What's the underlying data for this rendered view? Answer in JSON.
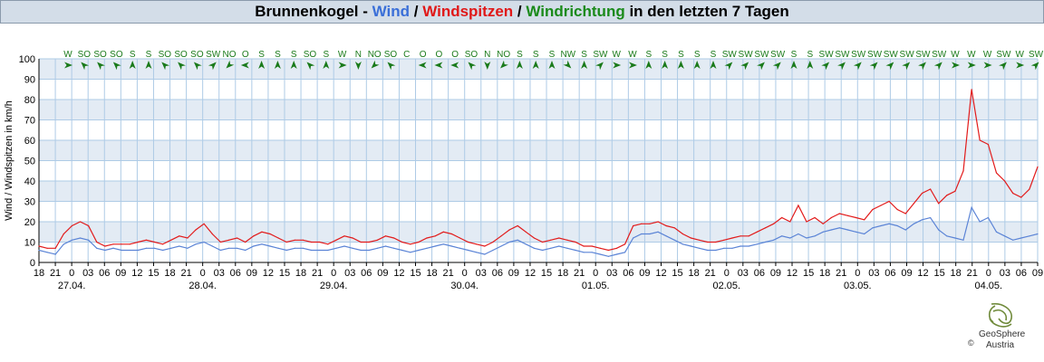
{
  "title": {
    "station": "Brunnenkogel",
    "sep1": " - ",
    "wind": "Wind",
    "sep2": " / ",
    "gusts": "Windspitzen",
    "sep3": " / ",
    "direction": "Windrichtung",
    "suffix": " in den letzten 7 Tagen"
  },
  "colors": {
    "wind": "#5b84d6",
    "gusts": "#e21b1b",
    "direction": "#1a7a1a",
    "band": "#e3ebf4",
    "grid": "#aecbe6"
  },
  "logo": {
    "name": "GeoSphere",
    "sub": "Austria",
    "copyright": "©"
  },
  "chart_data": {
    "type": "line",
    "ylabel": "Wind / Windspitzen in km/h",
    "ylim": [
      0,
      100
    ],
    "yticks": [
      0,
      10,
      20,
      30,
      40,
      50,
      60,
      70,
      80,
      90,
      100
    ],
    "grid": true,
    "x_start": "26.04. 18:00",
    "x_hour_labels": [
      "18",
      "21",
      "0",
      "03",
      "06",
      "09",
      "12",
      "15",
      "18",
      "21",
      "0",
      "03",
      "06",
      "09",
      "12",
      "15",
      "18",
      "21",
      "0",
      "03",
      "06",
      "09",
      "12",
      "15",
      "18",
      "21",
      "0",
      "03",
      "06",
      "09",
      "12",
      "15",
      "18",
      "21",
      "0",
      "03",
      "06",
      "09",
      "12",
      "15",
      "18",
      "21",
      "0",
      "03",
      "06",
      "09",
      "12",
      "15",
      "18",
      "21",
      "0",
      "03",
      "06",
      "09",
      "12",
      "15",
      "18",
      "21",
      "0",
      "03",
      "06",
      "09"
    ],
    "date_labels": [
      {
        "label": "27.04.",
        "hour_index": 2
      },
      {
        "label": "28.04.",
        "hour_index": 10
      },
      {
        "label": "29.04.",
        "hour_index": 18
      },
      {
        "label": "30.04.",
        "hour_index": 26
      },
      {
        "label": "01.05.",
        "hour_index": 34
      },
      {
        "label": "02.05.",
        "hour_index": 42
      },
      {
        "label": "03.05.",
        "hour_index": 50
      },
      {
        "label": "04.05.",
        "hour_index": 58
      }
    ],
    "directions": [
      "W",
      "SO",
      "SO",
      "SO",
      "S",
      "S",
      "SO",
      "SO",
      "SO",
      "SW",
      "NO",
      "O",
      "S",
      "S",
      "S",
      "SO",
      "S",
      "W",
      "N",
      "NO",
      "SO",
      "C",
      "O",
      "O",
      "O",
      "SO",
      "N",
      "NO",
      "S",
      "S",
      "S",
      "NW",
      "S",
      "SW",
      "W",
      "W",
      "S",
      "S",
      "S",
      "S",
      "S",
      "SW",
      "SW",
      "SW",
      "SW",
      "S",
      "S",
      "SW",
      "SW",
      "SW",
      "SW",
      "SW",
      "SW",
      "SW",
      "SW",
      "W",
      "W",
      "W",
      "SW",
      "W",
      "SW"
    ],
    "series": [
      {
        "name": "Wind",
        "values": [
          6,
          5,
          4,
          9,
          11,
          12,
          11,
          7,
          6,
          7,
          6,
          6,
          6,
          7,
          7,
          6,
          7,
          8,
          7,
          9,
          10,
          8,
          6,
          7,
          7,
          6,
          8,
          9,
          8,
          7,
          6,
          7,
          7,
          6,
          6,
          6,
          7,
          8,
          7,
          6,
          6,
          7,
          8,
          7,
          6,
          5,
          6,
          7,
          8,
          9,
          8,
          7,
          6,
          5,
          4,
          6,
          8,
          10,
          11,
          9,
          7,
          6,
          7,
          8,
          7,
          6,
          5,
          5,
          4,
          3,
          4,
          5,
          12,
          14,
          14,
          15,
          13,
          11,
          9,
          8,
          7,
          6,
          6,
          7,
          7,
          8,
          8,
          9,
          10,
          11,
          13,
          12,
          14,
          12,
          13,
          15,
          16,
          17,
          16,
          15,
          14,
          17,
          18,
          19,
          18,
          16,
          19,
          21,
          22,
          16,
          13,
          12,
          11,
          27,
          20,
          22,
          15,
          13,
          11,
          12,
          13,
          14
        ]
      },
      {
        "name": "Windspitzen",
        "values": [
          8,
          7,
          7,
          14,
          18,
          20,
          18,
          10,
          8,
          9,
          9,
          9,
          10,
          11,
          10,
          9,
          11,
          13,
          12,
          16,
          19,
          14,
          10,
          11,
          12,
          10,
          13,
          15,
          14,
          12,
          10,
          11,
          11,
          10,
          10,
          9,
          11,
          13,
          12,
          10,
          10,
          11,
          13,
          12,
          10,
          9,
          10,
          12,
          13,
          15,
          14,
          12,
          10,
          9,
          8,
          10,
          13,
          16,
          18,
          15,
          12,
          10,
          11,
          12,
          11,
          10,
          8,
          8,
          7,
          6,
          7,
          9,
          18,
          19,
          19,
          20,
          18,
          17,
          14,
          12,
          11,
          10,
          10,
          11,
          12,
          13,
          13,
          15,
          17,
          19,
          22,
          20,
          28,
          20,
          22,
          19,
          22,
          24,
          23,
          22,
          21,
          26,
          28,
          30,
          26,
          24,
          29,
          34,
          36,
          29,
          33,
          35,
          45,
          85,
          60,
          58,
          44,
          40,
          34,
          32,
          36,
          47
        ]
      }
    ]
  }
}
